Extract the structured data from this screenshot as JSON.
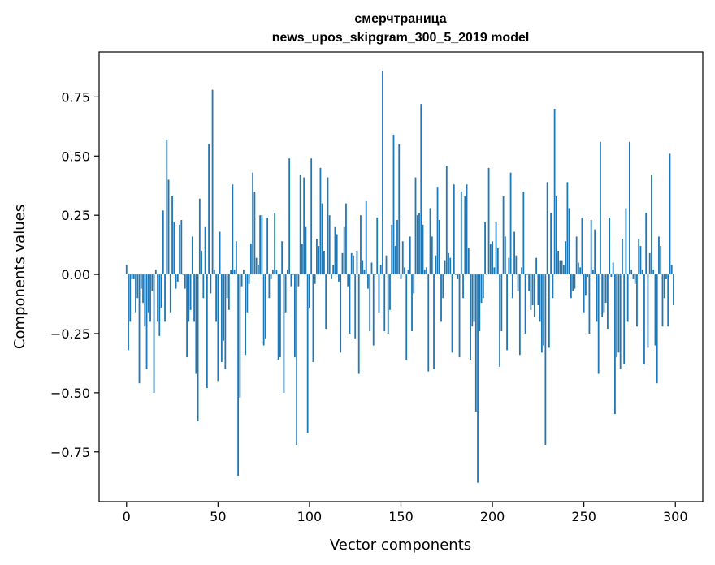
{
  "chart_data": {
    "type": "bar",
    "title": "смерчтраница",
    "subtitle": "news_upos_skipgram_300_5_2019 model",
    "xlabel": "Vector components",
    "ylabel": "Components values",
    "xlim": [
      -15,
      315
    ],
    "ylim": [
      -0.96,
      0.94
    ],
    "xticks": [
      0,
      50,
      100,
      150,
      200,
      250,
      300
    ],
    "yticks": [
      -0.75,
      -0.5,
      -0.25,
      0.0,
      0.25,
      0.5,
      0.75
    ],
    "ytick_labels": [
      "−0.75",
      "−0.50",
      "−0.25",
      "0.00",
      "0.25",
      "0.50",
      "0.75"
    ],
    "grid": false,
    "bar_color": "#1f77b4",
    "x_start": 0,
    "values": [
      0.04,
      -0.32,
      -0.2,
      -0.02,
      -0.02,
      -0.16,
      -0.1,
      -0.46,
      -0.06,
      -0.12,
      -0.22,
      -0.4,
      -0.16,
      -0.2,
      -0.07,
      -0.5,
      0.02,
      -0.2,
      -0.26,
      -0.14,
      0.27,
      -0.2,
      0.57,
      0.4,
      -0.16,
      0.33,
      0.22,
      -0.06,
      -0.03,
      0.21,
      0.23,
      0.0,
      -0.06,
      -0.35,
      -0.2,
      -0.15,
      0.16,
      -0.2,
      -0.42,
      -0.62,
      0.32,
      0.1,
      -0.1,
      0.2,
      -0.48,
      0.55,
      -0.08,
      0.78,
      0.02,
      -0.2,
      -0.45,
      0.18,
      -0.37,
      -0.28,
      -0.4,
      -0.1,
      -0.15,
      0.02,
      0.38,
      0.02,
      0.14,
      -0.85,
      -0.52,
      -0.05,
      0.02,
      -0.34,
      -0.16,
      -0.04,
      0.13,
      0.43,
      0.35,
      0.07,
      0.04,
      0.25,
      0.25,
      -0.3,
      -0.27,
      0.24,
      -0.1,
      -0.02,
      0.02,
      0.26,
      0.02,
      -0.36,
      -0.35,
      0.14,
      -0.5,
      -0.16,
      0.02,
      0.49,
      -0.05,
      0.0,
      -0.35,
      -0.72,
      -0.05,
      0.42,
      0.13,
      0.41,
      0.2,
      -0.67,
      -0.14,
      0.49,
      -0.37,
      -0.04,
      0.15,
      0.12,
      0.45,
      0.3,
      0.1,
      -0.23,
      0.41,
      0.25,
      -0.02,
      0.04,
      0.2,
      0.17,
      -0.03,
      -0.33,
      0.09,
      0.2,
      0.3,
      -0.05,
      -0.25,
      0.09,
      0.08,
      -0.27,
      0.1,
      -0.42,
      0.25,
      0.06,
      0.02,
      0.31,
      -0.06,
      -0.24,
      0.05,
      -0.3,
      0.0,
      0.24,
      -0.16,
      0.04,
      0.86,
      -0.24,
      0.08,
      -0.25,
      -0.15,
      0.21,
      0.59,
      0.12,
      0.23,
      0.55,
      -0.02,
      0.14,
      0.03,
      -0.36,
      0.02,
      0.16,
      -0.24,
      -0.08,
      0.41,
      0.25,
      0.26,
      0.72,
      0.21,
      0.02,
      0.03,
      -0.41,
      0.28,
      0.16,
      -0.4,
      0.08,
      0.37,
      0.23,
      -0.2,
      -0.1,
      0.06,
      0.46,
      0.09,
      0.07,
      -0.33,
      0.38,
      0.0,
      -0.02,
      -0.35,
      0.35,
      -0.1,
      0.33,
      0.38,
      0.11,
      -0.36,
      -0.22,
      -0.2,
      -0.58,
      -0.88,
      -0.24,
      -0.12,
      -0.1,
      0.22,
      0.0,
      0.45,
      0.13,
      0.14,
      0.03,
      0.22,
      0.11,
      -0.39,
      -0.24,
      0.33,
      0.16,
      -0.32,
      0.07,
      0.43,
      -0.1,
      0.18,
      0.08,
      -0.07,
      -0.34,
      0.03,
      0.35,
      -0.25,
      0.0,
      -0.07,
      -0.15,
      -0.13,
      -0.18,
      0.07,
      -0.13,
      -0.2,
      -0.33,
      -0.3,
      -0.72,
      0.39,
      -0.31,
      0.26,
      -0.1,
      0.7,
      0.33,
      0.1,
      0.06,
      0.06,
      0.04,
      0.14,
      0.39,
      0.28,
      -0.1,
      -0.07,
      -0.06,
      0.16,
      0.05,
      0.03,
      0.24,
      -0.16,
      -0.09,
      -0.01,
      -0.25,
      0.23,
      0.02,
      0.19,
      -0.2,
      -0.42,
      0.56,
      -0.18,
      -0.16,
      -0.12,
      -0.23,
      0.24,
      -0.01,
      0.05,
      -0.59,
      -0.35,
      -0.33,
      -0.4,
      0.15,
      -0.38,
      0.28,
      -0.2,
      0.56,
      0.02,
      -0.02,
      -0.04,
      -0.22,
      0.15,
      0.12,
      0.02,
      -0.38,
      0.26,
      -0.31,
      0.09,
      0.42,
      0.02,
      -0.3,
      -0.46,
      0.16,
      0.12,
      -0.22,
      -0.1,
      -0.02,
      -0.22,
      0.51,
      0.04,
      -0.13
    ]
  }
}
